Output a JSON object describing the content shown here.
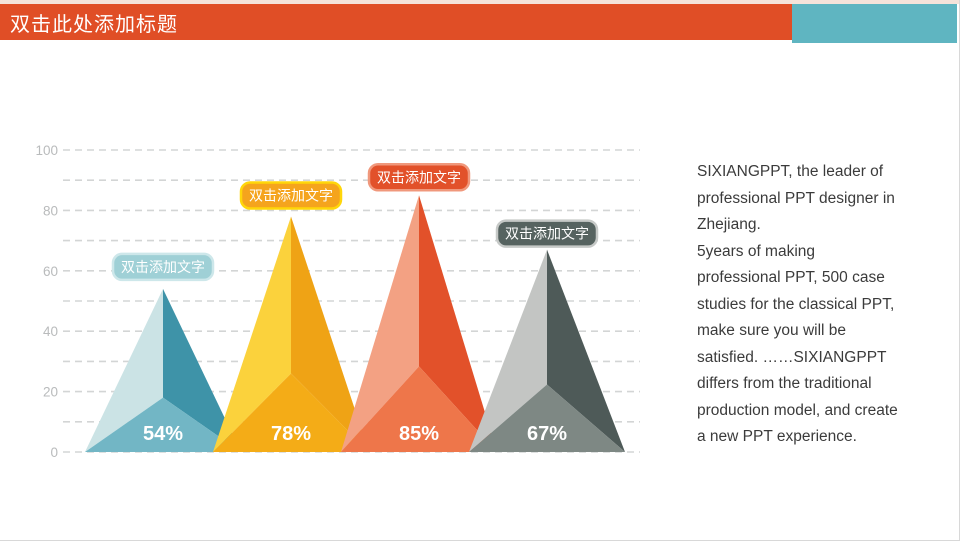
{
  "header": {
    "title": "双击此处添加标题",
    "bar_color": "#E04E26",
    "accent_color": "#5FB5C1"
  },
  "description": {
    "text": "SIXIANGPPT,  the leader of\nprofessional PPT designer in\nZhejiang.\n5years of making\nprofessional PPT, 500 case\nstudies for the classical PPT,\nmake sure you will be\nsatisfied. ……SIXIANGPPT\ndiffers from the traditional\nproduction model, and create\na new PPT experience."
  },
  "chart_data": {
    "type": "bar",
    "variant": "3d-pyramid",
    "title": "",
    "xlabel": "",
    "ylabel": "",
    "categories": [
      "双击添加文字",
      "双击添加文字",
      "双击添加文字",
      "双击添加文字"
    ],
    "values": [
      54,
      78,
      85,
      67
    ],
    "value_labels": [
      "54%",
      "78%",
      "85%",
      "67%"
    ],
    "ylim": [
      0,
      100
    ],
    "ytick_labels": [
      "0",
      "20",
      "40",
      "60",
      "80",
      "100"
    ],
    "ytick_step": 20,
    "gridline_step": 10,
    "grid": "dashed",
    "legend": "none",
    "axis_label_color": "#b9bbbc",
    "gridline_color": "#d3d5d5",
    "value_label_color": "#ffffff",
    "series_colors": [
      {
        "name": "teal",
        "left": "#cbe3e5",
        "right": "#3e93a8",
        "bottom": "#72b6c5",
        "badge_fill": "#9fd0d6",
        "badge_border": "#cde7ea",
        "badge_text": "#ffffff"
      },
      {
        "name": "yellow",
        "left": "#fbd23c",
        "right": "#efa315",
        "bottom": "#f4ac17",
        "badge_fill": "#f5a41d",
        "badge_border": "#ffd60a",
        "badge_text": "#ffffff"
      },
      {
        "name": "red",
        "left": "#f3a183",
        "right": "#e2512a",
        "bottom": "#ee764a",
        "badge_fill": "#e2512a",
        "badge_border": "#f0987c",
        "badge_text": "#ffffff"
      },
      {
        "name": "gray",
        "left": "#c3c5c3",
        "right": "#4e5a58",
        "bottom": "#7e8884",
        "badge_fill": "#566360",
        "badge_border": "#c6c9c7",
        "badge_text": "#ffffff"
      }
    ]
  }
}
